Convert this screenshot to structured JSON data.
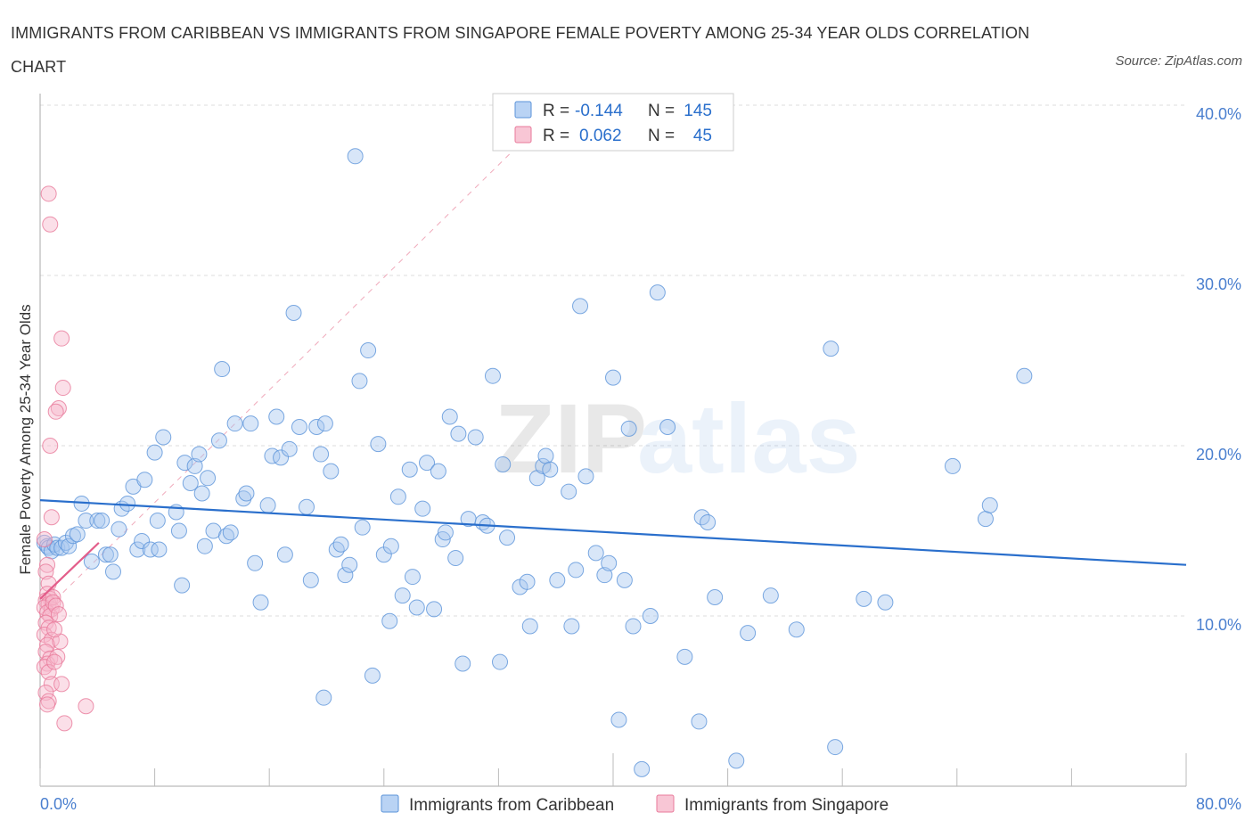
{
  "title": "IMMIGRANTS FROM CARIBBEAN VS IMMIGRANTS FROM SINGAPORE FEMALE POVERTY AMONG 25-34 YEAR OLDS CORRELATION CHART",
  "source": "Source: ZipAtlas.com",
  "watermark": {
    "zip": "ZIP",
    "atlas": "atlas"
  },
  "colors": {
    "blue_fill": "#a9c8f0",
    "blue_stroke": "#5b93d9",
    "blue_line": "#2a6fcc",
    "pink_fill": "#f6b9cb",
    "pink_stroke": "#e8799a",
    "pink_line": "#e35d8a",
    "tick_text": "#4a7fcf",
    "grid": "#dddddd"
  },
  "stats_box": {
    "rows": [
      {
        "r_label": "R =",
        "r_value": "-0.144",
        "n_label": "N =",
        "n_value": "145"
      },
      {
        "r_label": "R =",
        "r_value": "0.062",
        "n_label": "N =",
        "n_value": "45"
      }
    ]
  },
  "chart_data": {
    "type": "scatter",
    "title": "IMMIGRANTS FROM CARIBBEAN VS IMMIGRANTS FROM SINGAPORE FEMALE POVERTY AMONG 25-34 YEAR OLDS CORRELATION CHART",
    "xlabel": "",
    "ylabel": "Female Poverty Among 25-34 Year Olds",
    "xlim": [
      0,
      80
    ],
    "ylim": [
      0,
      40
    ],
    "x_tick_labels": [
      "0.0%",
      "80.0%"
    ],
    "y_ticks": [
      10,
      20,
      30,
      40
    ],
    "y_tick_labels": [
      "10.0%",
      "20.0%",
      "30.0%",
      "40.0%"
    ],
    "grid": true,
    "legend_position": "bottom-center",
    "series": [
      {
        "name": "Immigrants from Caribbean",
        "color": "blue",
        "trend": {
          "x": [
            0,
            80
          ],
          "y": [
            16.8,
            13.0
          ]
        },
        "points": [
          [
            0.3,
            14.3
          ],
          [
            0.5,
            14.1
          ],
          [
            0.6,
            14.0
          ],
          [
            0.8,
            13.8
          ],
          [
            1.0,
            14.2
          ],
          [
            1.2,
            14.0
          ],
          [
            1.5,
            14.0
          ],
          [
            1.8,
            14.3
          ],
          [
            2.0,
            14.1
          ],
          [
            2.3,
            14.7
          ],
          [
            2.6,
            14.8
          ],
          [
            2.9,
            16.6
          ],
          [
            3.2,
            15.6
          ],
          [
            3.6,
            13.2
          ],
          [
            4.0,
            15.6
          ],
          [
            4.3,
            15.6
          ],
          [
            4.6,
            13.6
          ],
          [
            4.9,
            13.6
          ],
          [
            5.1,
            12.6
          ],
          [
            5.5,
            15.1
          ],
          [
            5.7,
            16.3
          ],
          [
            6.1,
            16.6
          ],
          [
            6.5,
            17.6
          ],
          [
            6.8,
            13.9
          ],
          [
            7.1,
            14.4
          ],
          [
            7.3,
            18.0
          ],
          [
            7.7,
            13.9
          ],
          [
            8.0,
            19.6
          ],
          [
            8.2,
            15.6
          ],
          [
            8.6,
            20.5
          ],
          [
            8.3,
            13.9
          ],
          [
            9.5,
            16.1
          ],
          [
            9.7,
            15.0
          ],
          [
            9.9,
            11.8
          ],
          [
            10.1,
            19.0
          ],
          [
            10.5,
            17.8
          ],
          [
            10.8,
            18.8
          ],
          [
            11.1,
            19.5
          ],
          [
            11.3,
            17.2
          ],
          [
            11.5,
            14.1
          ],
          [
            11.7,
            18.1
          ],
          [
            12.1,
            15.0
          ],
          [
            12.5,
            20.3
          ],
          [
            12.7,
            24.5
          ],
          [
            13.0,
            14.7
          ],
          [
            13.3,
            14.9
          ],
          [
            13.6,
            21.3
          ],
          [
            14.2,
            16.9
          ],
          [
            14.4,
            17.2
          ],
          [
            14.7,
            21.3
          ],
          [
            15.0,
            13.1
          ],
          [
            15.4,
            10.8
          ],
          [
            15.9,
            16.5
          ],
          [
            16.2,
            19.4
          ],
          [
            16.5,
            21.7
          ],
          [
            16.8,
            19.3
          ],
          [
            17.1,
            13.6
          ],
          [
            17.4,
            19.8
          ],
          [
            17.7,
            27.8
          ],
          [
            18.1,
            21.1
          ],
          [
            18.6,
            16.4
          ],
          [
            18.9,
            12.1
          ],
          [
            19.3,
            21.1
          ],
          [
            19.6,
            19.5
          ],
          [
            19.9,
            21.3
          ],
          [
            20.3,
            18.5
          ],
          [
            20.7,
            13.9
          ],
          [
            21.0,
            14.2
          ],
          [
            21.3,
            12.4
          ],
          [
            21.6,
            13.0
          ],
          [
            22.0,
            37.0
          ],
          [
            22.3,
            23.8
          ],
          [
            22.5,
            15.2
          ],
          [
            22.9,
            25.6
          ],
          [
            23.2,
            6.5
          ],
          [
            23.6,
            20.1
          ],
          [
            24.0,
            13.6
          ],
          [
            24.4,
            9.7
          ],
          [
            24.5,
            14.1
          ],
          [
            25.0,
            17.0
          ],
          [
            25.3,
            11.2
          ],
          [
            25.8,
            18.6
          ],
          [
            26.0,
            12.3
          ],
          [
            26.3,
            10.5
          ],
          [
            26.7,
            16.3
          ],
          [
            27.0,
            19.0
          ],
          [
            27.5,
            10.4
          ],
          [
            27.8,
            18.5
          ],
          [
            28.1,
            14.5
          ],
          [
            28.3,
            14.9
          ],
          [
            28.6,
            21.7
          ],
          [
            29.0,
            13.4
          ],
          [
            29.2,
            20.7
          ],
          [
            29.5,
            7.2
          ],
          [
            29.9,
            15.7
          ],
          [
            30.4,
            20.5
          ],
          [
            30.9,
            15.5
          ],
          [
            31.2,
            15.3
          ],
          [
            31.6,
            24.1
          ],
          [
            32.1,
            7.3
          ],
          [
            32.3,
            18.9
          ],
          [
            32.6,
            14.6
          ],
          [
            33.5,
            11.7
          ],
          [
            34.0,
            12.0
          ],
          [
            34.2,
            9.4
          ],
          [
            34.7,
            18.1
          ],
          [
            35.1,
            18.8
          ],
          [
            35.3,
            19.4
          ],
          [
            35.6,
            18.6
          ],
          [
            36.1,
            12.1
          ],
          [
            36.9,
            17.3
          ],
          [
            37.1,
            9.4
          ],
          [
            37.4,
            12.7
          ],
          [
            37.7,
            28.2
          ],
          [
            38.1,
            18.2
          ],
          [
            38.8,
            13.7
          ],
          [
            39.4,
            12.4
          ],
          [
            39.7,
            13.1
          ],
          [
            40.0,
            24.0
          ],
          [
            40.4,
            3.9
          ],
          [
            40.8,
            12.1
          ],
          [
            41.1,
            21.0
          ],
          [
            41.4,
            9.4
          ],
          [
            42.0,
            1.0
          ],
          [
            42.6,
            10.0
          ],
          [
            43.1,
            29.0
          ],
          [
            43.8,
            21.1
          ],
          [
            45.0,
            7.6
          ],
          [
            46.0,
            3.8
          ],
          [
            46.2,
            15.8
          ],
          [
            46.6,
            15.5
          ],
          [
            47.1,
            11.1
          ],
          [
            48.6,
            1.5
          ],
          [
            49.4,
            9.0
          ],
          [
            51.0,
            11.2
          ],
          [
            52.8,
            9.2
          ],
          [
            55.2,
            25.7
          ],
          [
            55.5,
            2.3
          ],
          [
            57.5,
            11.0
          ],
          [
            59.0,
            10.8
          ],
          [
            63.7,
            18.8
          ],
          [
            66.0,
            15.7
          ],
          [
            66.3,
            16.5
          ],
          [
            68.7,
            24.1
          ],
          [
            19.8,
            5.2
          ]
        ]
      },
      {
        "name": "Immigrants from Singapore",
        "color": "pink",
        "trend": {
          "x": [
            0,
            4.1
          ],
          "y": [
            11.0,
            14.3
          ]
        },
        "points": [
          [
            0.3,
            14.5
          ],
          [
            0.5,
            13.0
          ],
          [
            0.4,
            12.6
          ],
          [
            0.6,
            11.9
          ],
          [
            0.5,
            11.3
          ],
          [
            0.7,
            11.0
          ],
          [
            0.4,
            10.9
          ],
          [
            0.6,
            10.7
          ],
          [
            0.3,
            10.5
          ],
          [
            0.8,
            10.4
          ],
          [
            0.5,
            10.2
          ],
          [
            0.7,
            10.0
          ],
          [
            0.4,
            9.6
          ],
          [
            0.6,
            9.3
          ],
          [
            0.3,
            8.9
          ],
          [
            0.8,
            8.6
          ],
          [
            0.5,
            8.3
          ],
          [
            0.4,
            7.9
          ],
          [
            0.7,
            7.5
          ],
          [
            0.5,
            7.2
          ],
          [
            0.3,
            7.0
          ],
          [
            0.6,
            6.7
          ],
          [
            0.8,
            6.0
          ],
          [
            0.4,
            5.5
          ],
          [
            0.6,
            5.0
          ],
          [
            0.5,
            4.8
          ],
          [
            0.7,
            33.0
          ],
          [
            0.6,
            34.8
          ],
          [
            1.5,
            26.3
          ],
          [
            1.6,
            23.4
          ],
          [
            1.3,
            22.2
          ],
          [
            1.1,
            22.0
          ],
          [
            0.7,
            20.0
          ],
          [
            0.8,
            15.8
          ],
          [
            0.9,
            11.1
          ],
          [
            1.4,
            8.5
          ],
          [
            1.2,
            7.6
          ],
          [
            1.0,
            7.3
          ],
          [
            1.5,
            6.0
          ],
          [
            1.7,
            3.7
          ],
          [
            3.2,
            4.7
          ],
          [
            0.9,
            10.8
          ],
          [
            1.1,
            10.6
          ],
          [
            1.3,
            10.1
          ],
          [
            1.0,
            9.2
          ]
        ]
      }
    ]
  }
}
